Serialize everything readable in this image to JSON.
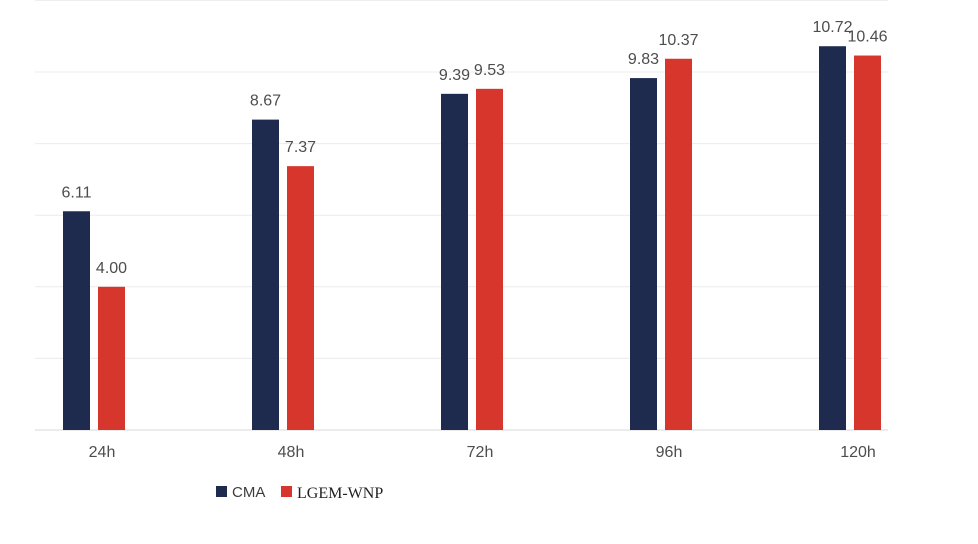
{
  "chart_data": {
    "type": "bar",
    "title": "",
    "xlabel": "",
    "ylabel": "",
    "categories": [
      "24h",
      "48h",
      "72h",
      "96h",
      "120h"
    ],
    "series": [
      {
        "name": "CMA",
        "color": "#1f2a4f",
        "values": [
          6.11,
          8.67,
          9.39,
          9.83,
          10.72
        ],
        "labels": [
          "6.11",
          "8.67",
          "9.39",
          "9.83",
          "10.72"
        ]
      },
      {
        "name": "LGEM-WNP",
        "color": "#d6362b",
        "values": [
          4.0,
          7.37,
          9.53,
          10.37,
          10.46
        ],
        "labels": [
          "4.00",
          "7.37",
          "9.53",
          "10.37",
          "10.46"
        ]
      }
    ],
    "ylim": [
      0,
      12
    ],
    "grid": true,
    "legend_position": "bottom-left"
  }
}
